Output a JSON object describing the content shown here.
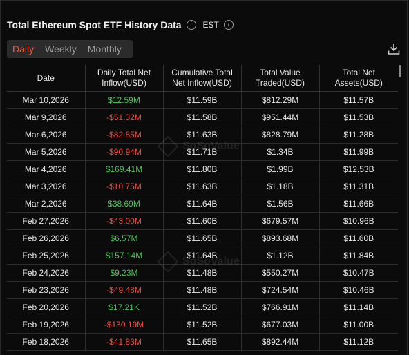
{
  "header": {
    "title": "Total Ethereum Spot ETF History Data",
    "timezone": "EST"
  },
  "tabs": [
    {
      "label": "Daily",
      "active": true
    },
    {
      "label": "Weekly",
      "active": false
    },
    {
      "label": "Monthly",
      "active": false
    }
  ],
  "icons": {
    "info": "info-icon",
    "download": "download-icon"
  },
  "colors": {
    "accent": "#ff5a36",
    "positive": "#4cc35a",
    "negative": "#ee4a3c"
  },
  "watermark": "SoSoValue",
  "table": {
    "headers": [
      [
        "Date"
      ],
      [
        "Daily Total Net",
        "Inflow(USD)"
      ],
      [
        "Cumulative Total",
        "Net Inflow(USD)"
      ],
      [
        "Total Value",
        "Traded(USD)"
      ],
      [
        "Total Net",
        "Assets(USD)"
      ]
    ],
    "rows": [
      {
        "date": "Mar 10,2026",
        "daily": "$12.59M",
        "sign": "pos",
        "cumulative": "$11.59B",
        "traded": "$812.29M",
        "assets": "$11.57B"
      },
      {
        "date": "Mar 9,2026",
        "daily": "-$51.32M",
        "sign": "neg",
        "cumulative": "$11.58B",
        "traded": "$951.44M",
        "assets": "$11.53B"
      },
      {
        "date": "Mar 6,2026",
        "daily": "-$82.85M",
        "sign": "neg",
        "cumulative": "$11.63B",
        "traded": "$828.79M",
        "assets": "$11.28B"
      },
      {
        "date": "Mar 5,2026",
        "daily": "-$90.94M",
        "sign": "neg",
        "cumulative": "$11.71B",
        "traded": "$1.34B",
        "assets": "$11.99B"
      },
      {
        "date": "Mar 4,2026",
        "daily": "$169.41M",
        "sign": "pos",
        "cumulative": "$11.80B",
        "traded": "$1.99B",
        "assets": "$12.53B"
      },
      {
        "date": "Mar 3,2026",
        "daily": "-$10.75M",
        "sign": "neg",
        "cumulative": "$11.63B",
        "traded": "$1.18B",
        "assets": "$11.31B"
      },
      {
        "date": "Mar 2,2026",
        "daily": "$38.69M",
        "sign": "pos",
        "cumulative": "$11.64B",
        "traded": "$1.56B",
        "assets": "$11.66B"
      },
      {
        "date": "Feb 27,2026",
        "daily": "-$43.00M",
        "sign": "neg",
        "cumulative": "$11.60B",
        "traded": "$679.57M",
        "assets": "$10.96B"
      },
      {
        "date": "Feb 26,2026",
        "daily": "$6.57M",
        "sign": "pos",
        "cumulative": "$11.65B",
        "traded": "$893.68M",
        "assets": "$11.60B"
      },
      {
        "date": "Feb 25,2026",
        "daily": "$157.14M",
        "sign": "pos",
        "cumulative": "$11.64B",
        "traded": "$1.12B",
        "assets": "$11.84B"
      },
      {
        "date": "Feb 24,2026",
        "daily": "$9.23M",
        "sign": "pos",
        "cumulative": "$11.48B",
        "traded": "$550.27M",
        "assets": "$10.47B"
      },
      {
        "date": "Feb 23,2026",
        "daily": "-$49.48M",
        "sign": "neg",
        "cumulative": "$11.48B",
        "traded": "$724.54M",
        "assets": "$10.46B"
      },
      {
        "date": "Feb 20,2026",
        "daily": "$17.21K",
        "sign": "pos",
        "cumulative": "$11.52B",
        "traded": "$766.91M",
        "assets": "$11.14B"
      },
      {
        "date": "Feb 19,2026",
        "daily": "-$130.19M",
        "sign": "neg",
        "cumulative": "$11.52B",
        "traded": "$677.03M",
        "assets": "$11.00B"
      },
      {
        "date": "Feb 18,2026",
        "daily": "-$41.83M",
        "sign": "neg",
        "cumulative": "$11.65B",
        "traded": "$892.44M",
        "assets": "$11.12B"
      }
    ]
  }
}
